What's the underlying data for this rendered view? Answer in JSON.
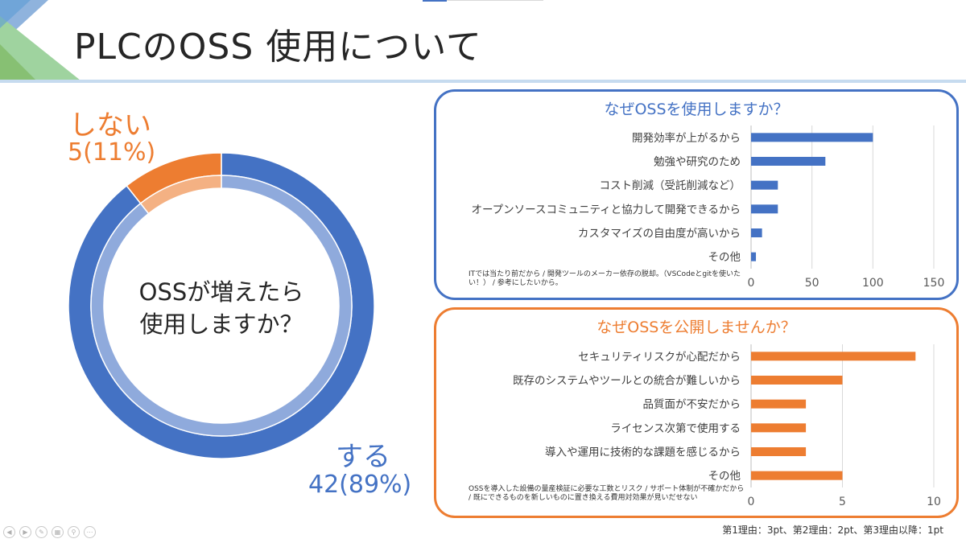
{
  "slide": {
    "title": "PLCのOSS 使用について",
    "scoring_note": "第1理由：3pt、第2理由：2pt、第3理由以降：1pt",
    "colors": {
      "blue": "#4472c4",
      "orange": "#ed7d31",
      "light_blue": "#8faadc",
      "light_orange": "#f4b183"
    }
  },
  "donut": {
    "center_line1": "OSSが増えたら",
    "center_line2": "使用しますか？",
    "no_label": "しない",
    "no_count": "5(11%)",
    "yes_label": "する",
    "yes_count": "42(89%)"
  },
  "chart_data": [
    {
      "type": "pie",
      "title": "OSSが増えたら使用しますか？",
      "categories": [
        "する",
        "しない"
      ],
      "values": [
        42,
        5
      ],
      "colors": [
        "#4472c4",
        "#ed7d31"
      ]
    },
    {
      "type": "bar",
      "orientation": "horizontal",
      "title": "なぜOSSを使用しますか？",
      "categories": [
        "開発効率が上がるから",
        "勉強や研究のため",
        "コスト削減（受託削減など）",
        "オープンソースコミュニティと協力して開発できるから",
        "カスタマイズの自由度が高いから",
        "その他"
      ],
      "values": [
        100,
        61,
        22,
        22,
        9,
        4
      ],
      "xlim": [
        0,
        150
      ],
      "xticks": [
        "0",
        "50",
        "100",
        "150"
      ],
      "grid": true,
      "color": "#4472c4",
      "annotation": [
        "ITでは当たり前だから / 開発ツールのメーカー依存の脱却。（VSCodeとgitを使いた",
        "い！） / 参考にしたいから。"
      ]
    },
    {
      "type": "bar",
      "orientation": "horizontal",
      "title": "なぜOSSを公開しませんか？",
      "categories": [
        "セキュリティリスクが心配だから",
        "既存のシステムやツールとの統合が難しいから",
        "品質面が不安だから",
        "ライセンス次第で使用する",
        "導入や運用に技術的な課題を感じるから",
        "その他"
      ],
      "values": [
        9,
        5,
        3,
        3,
        3,
        5
      ],
      "xlim": [
        0,
        10
      ],
      "xticks": [
        "0",
        "5",
        "10"
      ],
      "grid": true,
      "color": "#ed7d31",
      "annotation": [
        "OSSを導入した設備の量産検証に必要な工数とリスク / サポート体制が不確かだから",
        "/ 既にできるものを新しいものに置き換える費用対効果が見いだせない"
      ]
    }
  ]
}
